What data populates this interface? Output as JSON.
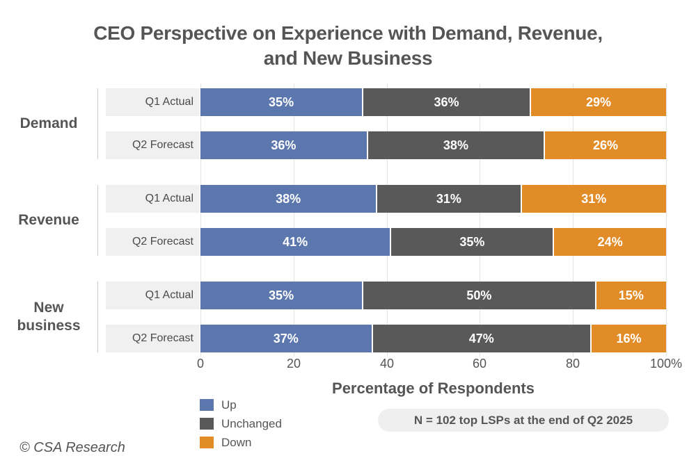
{
  "header": {
    "title_lines": [
      "CEO Perspective on Experience with Demand, Revenue,",
      "and New Business"
    ]
  },
  "chart_data": {
    "type": "bar",
    "orientation": "horizontal",
    "stacked": true,
    "title": "CEO Perspective on Experience with Demand, Revenue, and New Business",
    "groups": [
      {
        "name": "Demand",
        "rows": [
          {
            "label": "Q1 Actual",
            "values": [
              35,
              36,
              29
            ]
          },
          {
            "label": "Q2 Forecast",
            "values": [
              36,
              38,
              26
            ]
          }
        ]
      },
      {
        "name": "Revenue",
        "rows": [
          {
            "label": "Q1 Actual",
            "values": [
              38,
              31,
              31
            ]
          },
          {
            "label": "Q2 Forecast",
            "values": [
              41,
              35,
              24
            ]
          }
        ]
      },
      {
        "name": "New business",
        "rows": [
          {
            "label": "Q1 Actual",
            "values": [
              35,
              50,
              15
            ]
          },
          {
            "label": "Q2 Forecast",
            "values": [
              37,
              47,
              16
            ]
          }
        ]
      }
    ],
    "series": [
      "Up",
      "Unchanged",
      "Down"
    ],
    "series_colors": [
      "#5b77ad",
      "#595959",
      "#e28c28"
    ],
    "value_suffix": "%",
    "xlabel": "Percentage of Respondents",
    "xlim": [
      0,
      100
    ],
    "x_tick_values": [
      0,
      20,
      40,
      60,
      80,
      100
    ],
    "x_tick_labels": [
      "0",
      "20",
      "40",
      "60",
      "80",
      "100%"
    ],
    "grid": true,
    "legend_position": "bottom-left"
  },
  "legend": {
    "items": [
      {
        "label": "Up",
        "color": "#5b77ad"
      },
      {
        "label": "Unchanged",
        "color": "#595959"
      },
      {
        "label": "Down",
        "color": "#e28c28"
      }
    ]
  },
  "note": {
    "text": "N = 102 top LSPs at the end of Q2 2025"
  },
  "footer": {
    "copyright": "© CSA Research"
  }
}
